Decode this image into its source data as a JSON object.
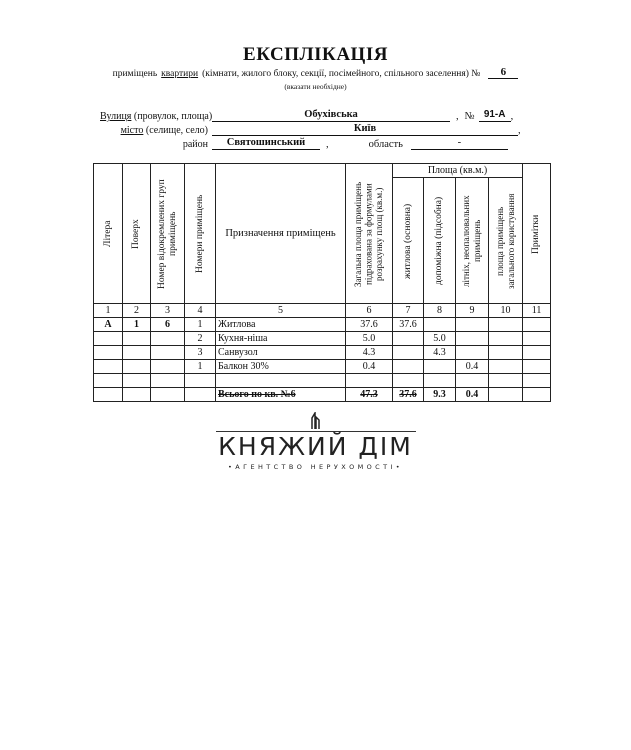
{
  "title": "ЕКСПЛІКАЦІЯ",
  "subtitle": {
    "prefix": "приміщень",
    "underlined": "квартири",
    "rest": "(кімнати, жилого блоку, секції, посімейного, спільного заселення) №",
    "number": "6",
    "hint": "(вказати необхідне)"
  },
  "address": {
    "street_label_u": "Вулиця",
    "street_label": "(провулок, площа)",
    "street": "Обухівська",
    "no_label": "№",
    "house": "91-А",
    "city_label_u": "місто",
    "city_label": "(селище, село)",
    "city": "Київ",
    "district_label": "район",
    "district": "Святошинський",
    "region_label": "область",
    "region": "-"
  },
  "table": {
    "headers": [
      "Літера",
      "Поверх",
      "Номер відокремлених груп приміщень",
      "Номери приміщень",
      "Призначення приміщень",
      "Загальна площа приміщень підрахована за формулами розрахунку площ (кв.м.)",
      "Площа (кв.м.)",
      "житлова (основна)",
      "допоміжна (підсобна)",
      "літніх, неопалювальних приміщень",
      "площа приміщень загального користування",
      "Примітки"
    ],
    "col_numbers": [
      "1",
      "2",
      "3",
      "4",
      "5",
      "6",
      "7",
      "8",
      "9",
      "10",
      "11"
    ],
    "rows": [
      [
        "А",
        "1",
        "6",
        "1",
        "Житлова",
        "37.6",
        "37.6",
        "",
        "",
        "",
        ""
      ],
      [
        "",
        "",
        "",
        "2",
        "Кухня-ніша",
        "5.0",
        "",
        "5.0",
        "",
        "",
        ""
      ],
      [
        "",
        "",
        "",
        "3",
        "Санвузол",
        "4.3",
        "",
        "4.3",
        "",
        "",
        ""
      ],
      [
        "",
        "",
        "",
        "1",
        "Балкон 30%",
        "0.4",
        "",
        "",
        "0.4",
        "",
        ""
      ],
      [
        "",
        "",
        "",
        "",
        "",
        "",
        "",
        "",
        "",
        "",
        ""
      ],
      [
        "",
        "",
        "",
        "",
        "Всього по кв. №6",
        "47.3",
        "37.6",
        "9.3",
        "0.4",
        "",
        ""
      ]
    ]
  },
  "watermark": {
    "name": "КНЯЖИЙ ДІМ",
    "tagline": "•АГЕНТСТВО НЕРУХОМОСТІ•"
  }
}
